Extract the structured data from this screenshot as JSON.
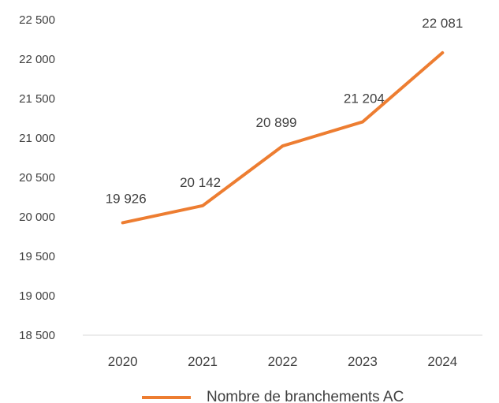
{
  "chart_data": {
    "type": "line",
    "title": "",
    "xlabel": "",
    "ylabel": "",
    "categories": [
      "2020",
      "2021",
      "2022",
      "2023",
      "2024"
    ],
    "series": [
      {
        "name": "Nombre de branchements AC",
        "values": [
          19926,
          20142,
          20899,
          21204,
          22081
        ],
        "data_labels": [
          "19 926",
          "20 142",
          "20 899",
          "21 204",
          "22 081"
        ],
        "color": "#ED7D31"
      }
    ],
    "ylim": [
      18500,
      22500
    ],
    "y_ticks": [
      18500,
      19000,
      19500,
      20000,
      20500,
      21000,
      21500,
      22000,
      22500
    ],
    "y_tick_labels": [
      "18 500",
      "19 000",
      "19 500",
      "20 000",
      "20 500",
      "21 000",
      "21 500",
      "22 000",
      "22 500"
    ],
    "grid": false,
    "legend_position": "bottom"
  },
  "colors": {
    "axis": "#D9D9D9",
    "text": "#404040"
  }
}
